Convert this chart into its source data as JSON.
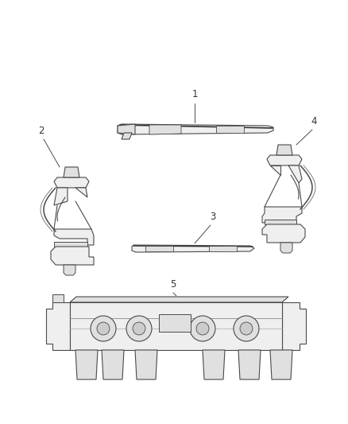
{
  "bg_color": "#ffffff",
  "line_color": "#4a4a4a",
  "label_color": "#333333",
  "label_fontsize": 7.5,
  "figsize": [
    4.38,
    5.33
  ],
  "dpi": 100,
  "lw": 0.8,
  "fill_light": "#efefef",
  "fill_mid": "#e0e0e0",
  "fill_dark": "#cccccc"
}
